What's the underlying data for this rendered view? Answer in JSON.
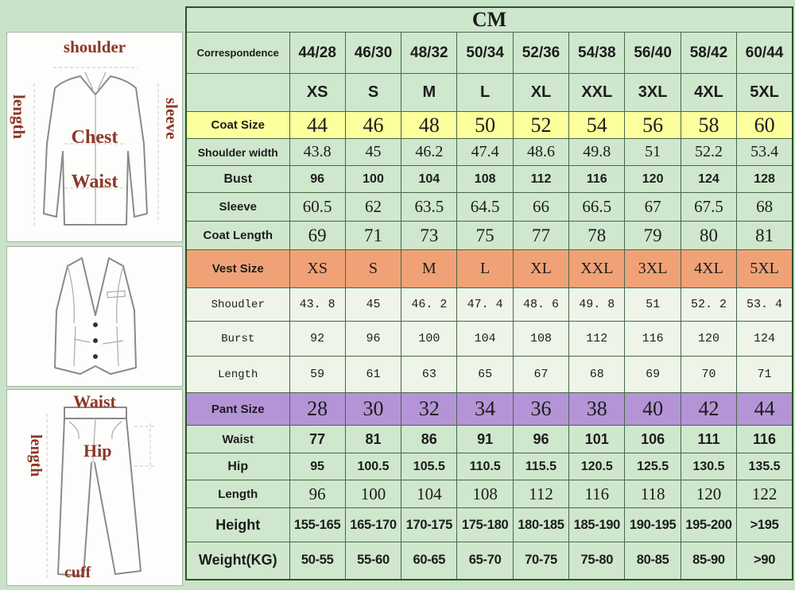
{
  "table": {
    "title": "CM",
    "rows": [
      {
        "label": "Correspondence",
        "values": [
          "44/28",
          "46/30",
          "48/32",
          "50/34",
          "52/36",
          "54/38",
          "56/40",
          "58/42",
          "60/44"
        ]
      },
      {
        "label": "",
        "values": [
          "XS",
          "S",
          "M",
          "L",
          "XL",
          "XXL",
          "3XL",
          "4XL",
          "5XL"
        ]
      },
      {
        "label": "Coat Size",
        "values": [
          "44",
          "46",
          "48",
          "50",
          "52",
          "54",
          "56",
          "58",
          "60"
        ]
      },
      {
        "label": "Shoulder width",
        "values": [
          "43.8",
          "45",
          "46.2",
          "47.4",
          "48.6",
          "49.8",
          "51",
          "52.2",
          "53.4"
        ]
      },
      {
        "label": "Bust",
        "values": [
          "96",
          "100",
          "104",
          "108",
          "112",
          "116",
          "120",
          "124",
          "128"
        ]
      },
      {
        "label": "Sleeve",
        "values": [
          "60.5",
          "62",
          "63.5",
          "64.5",
          "66",
          "66.5",
          "67",
          "67.5",
          "68"
        ]
      },
      {
        "label": "Coat Length",
        "values": [
          "69",
          "71",
          "73",
          "75",
          "77",
          "78",
          "79",
          "80",
          "81"
        ]
      },
      {
        "label": "Vest Size",
        "values": [
          "XS",
          "S",
          "M",
          "L",
          "XL",
          "XXL",
          "3XL",
          "4XL",
          "5XL"
        ]
      },
      {
        "label": "Shoudler",
        "values": [
          "43. 8",
          "45",
          "46. 2",
          "47. 4",
          "48. 6",
          "49. 8",
          "51",
          "52. 2",
          "53. 4"
        ]
      },
      {
        "label": "Burst",
        "values": [
          "92",
          "96",
          "100",
          "104",
          "108",
          "112",
          "116",
          "120",
          "124"
        ]
      },
      {
        "label": "Length",
        "values": [
          "59",
          "61",
          "63",
          "65",
          "67",
          "68",
          "69",
          "70",
          "71"
        ]
      },
      {
        "label": "Pant Size",
        "values": [
          "28",
          "30",
          "32",
          "34",
          "36",
          "38",
          "40",
          "42",
          "44"
        ]
      },
      {
        "label": "Waist",
        "values": [
          "77",
          "81",
          "86",
          "91",
          "96",
          "101",
          "106",
          "111",
          "116"
        ]
      },
      {
        "label": "Hip",
        "values": [
          "95",
          "100.5",
          "105.5",
          "110.5",
          "115.5",
          "120.5",
          "125.5",
          "130.5",
          "135.5"
        ]
      },
      {
        "label": "Length",
        "values": [
          "96",
          "100",
          "104",
          "108",
          "112",
          "116",
          "118",
          "120",
          "122"
        ]
      },
      {
        "label": "Height",
        "values": [
          "155-165",
          "165-170",
          "170-175",
          "175-180",
          "180-185",
          "185-190",
          "190-195",
          "195-200",
          ">195"
        ]
      },
      {
        "label": "Weight(KG)",
        "values": [
          "50-55",
          "55-60",
          "60-65",
          "65-70",
          "70-75",
          "75-80",
          "80-85",
          "85-90",
          ">90"
        ]
      }
    ]
  },
  "diagrams": {
    "jacket": {
      "shoulder": "shoulder",
      "length": "length",
      "sleeve": "sleeve",
      "chest": "Chest",
      "waist": "Waist"
    },
    "pants": {
      "waist": "Waist",
      "length": "length",
      "hip": "Hip",
      "cuff": "cuff"
    }
  },
  "colors": {
    "page_bg": "#c9e3c9",
    "cell_green": "#cfe7cd",
    "vest_row_bg": "#eef5e8",
    "coat_size_yellow": "#fdff9c",
    "vest_size_orange": "#f0a276",
    "pant_size_purple": "#b494d6",
    "size_label_red": "#c5221f",
    "correspondence_purple": "#9c2f9c",
    "height_weight_green": "#1d4420",
    "diagram_label_red": "#8b3626"
  }
}
